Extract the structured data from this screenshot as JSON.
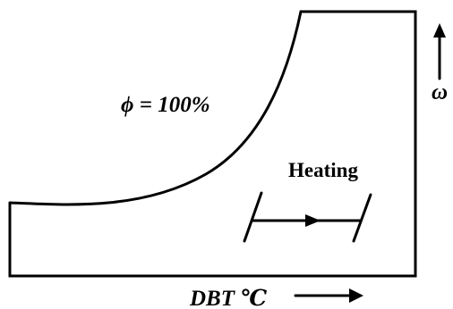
{
  "labels": {
    "saturation_curve": "ϕ = 100%",
    "heating": "Heating",
    "x_axis": "DBT ℃",
    "y_axis": "ω"
  },
  "colors": {
    "line": "#000000",
    "background": "#ffffff"
  },
  "icons": {
    "x_axis_arrow": "right-arrow-icon",
    "y_axis_arrow": "up-arrow-icon",
    "process_arrow": "arrowhead-icon"
  }
}
